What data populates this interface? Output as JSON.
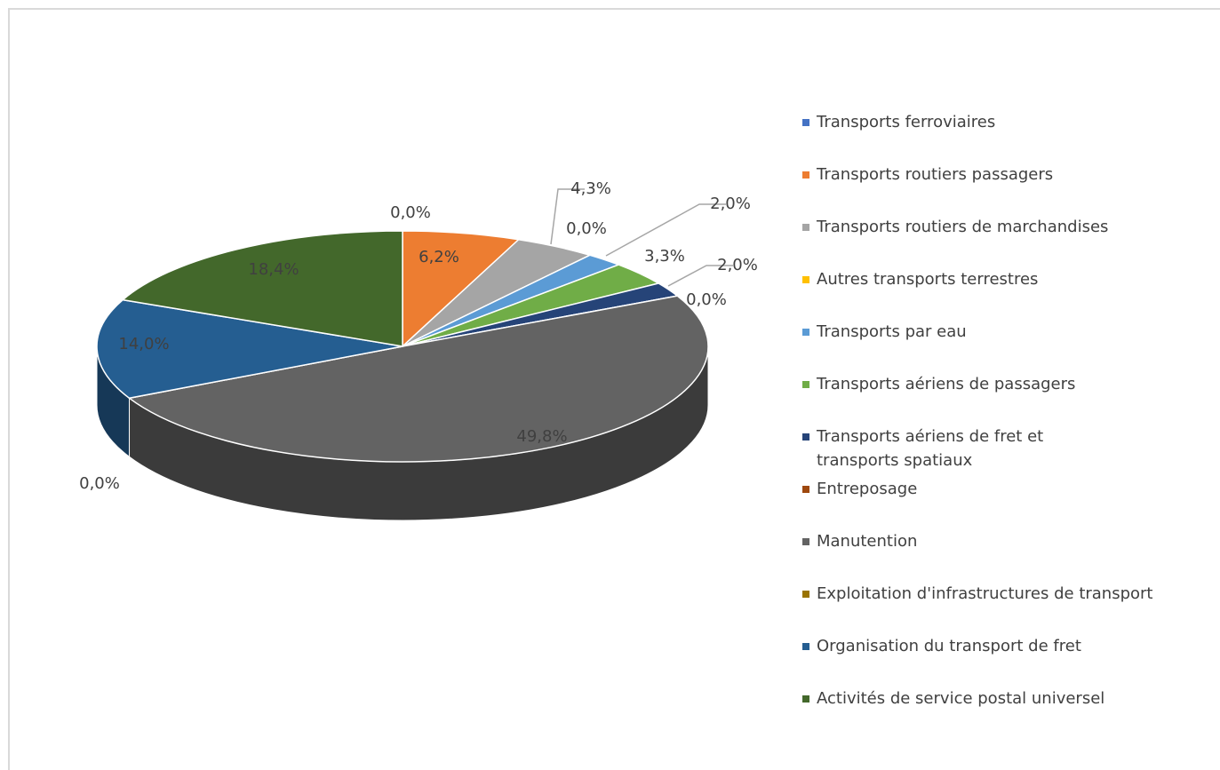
{
  "chart_data": {
    "type": "pie",
    "categories": [
      "Transports ferroviaires",
      "Transports routiers passagers",
      "Transports routiers de marchandises",
      "Autres transports terrestres",
      "Transports par eau",
      "Transports aériens de passagers",
      "Transports aériens de fret et transports spatiaux",
      "Entreposage",
      "Manutention",
      "Exploitation d'infrastructures de transport",
      "Organisation du transport de fret",
      "Activités de service postal universel"
    ],
    "values": [
      0.0,
      6.2,
      4.3,
      0.0,
      2.0,
      3.3,
      2.0,
      0.0,
      49.8,
      0.0,
      14.0,
      18.4
    ],
    "value_labels": [
      "0,0%",
      "6,2%",
      "4,3%",
      "0,0%",
      "2,0%",
      "3,3%",
      "2,0%",
      "0,0%",
      "49,8%",
      "0,0%",
      "14,0%",
      "18,4%"
    ],
    "colors": [
      "#4472c4",
      "#ed7d31",
      "#a5a5a5",
      "#ffc000",
      "#5b9bd5",
      "#70ad47",
      "#264478",
      "#9e480e",
      "#636363",
      "#997300",
      "#255e91",
      "#43682b"
    ],
    "legend": "right"
  }
}
